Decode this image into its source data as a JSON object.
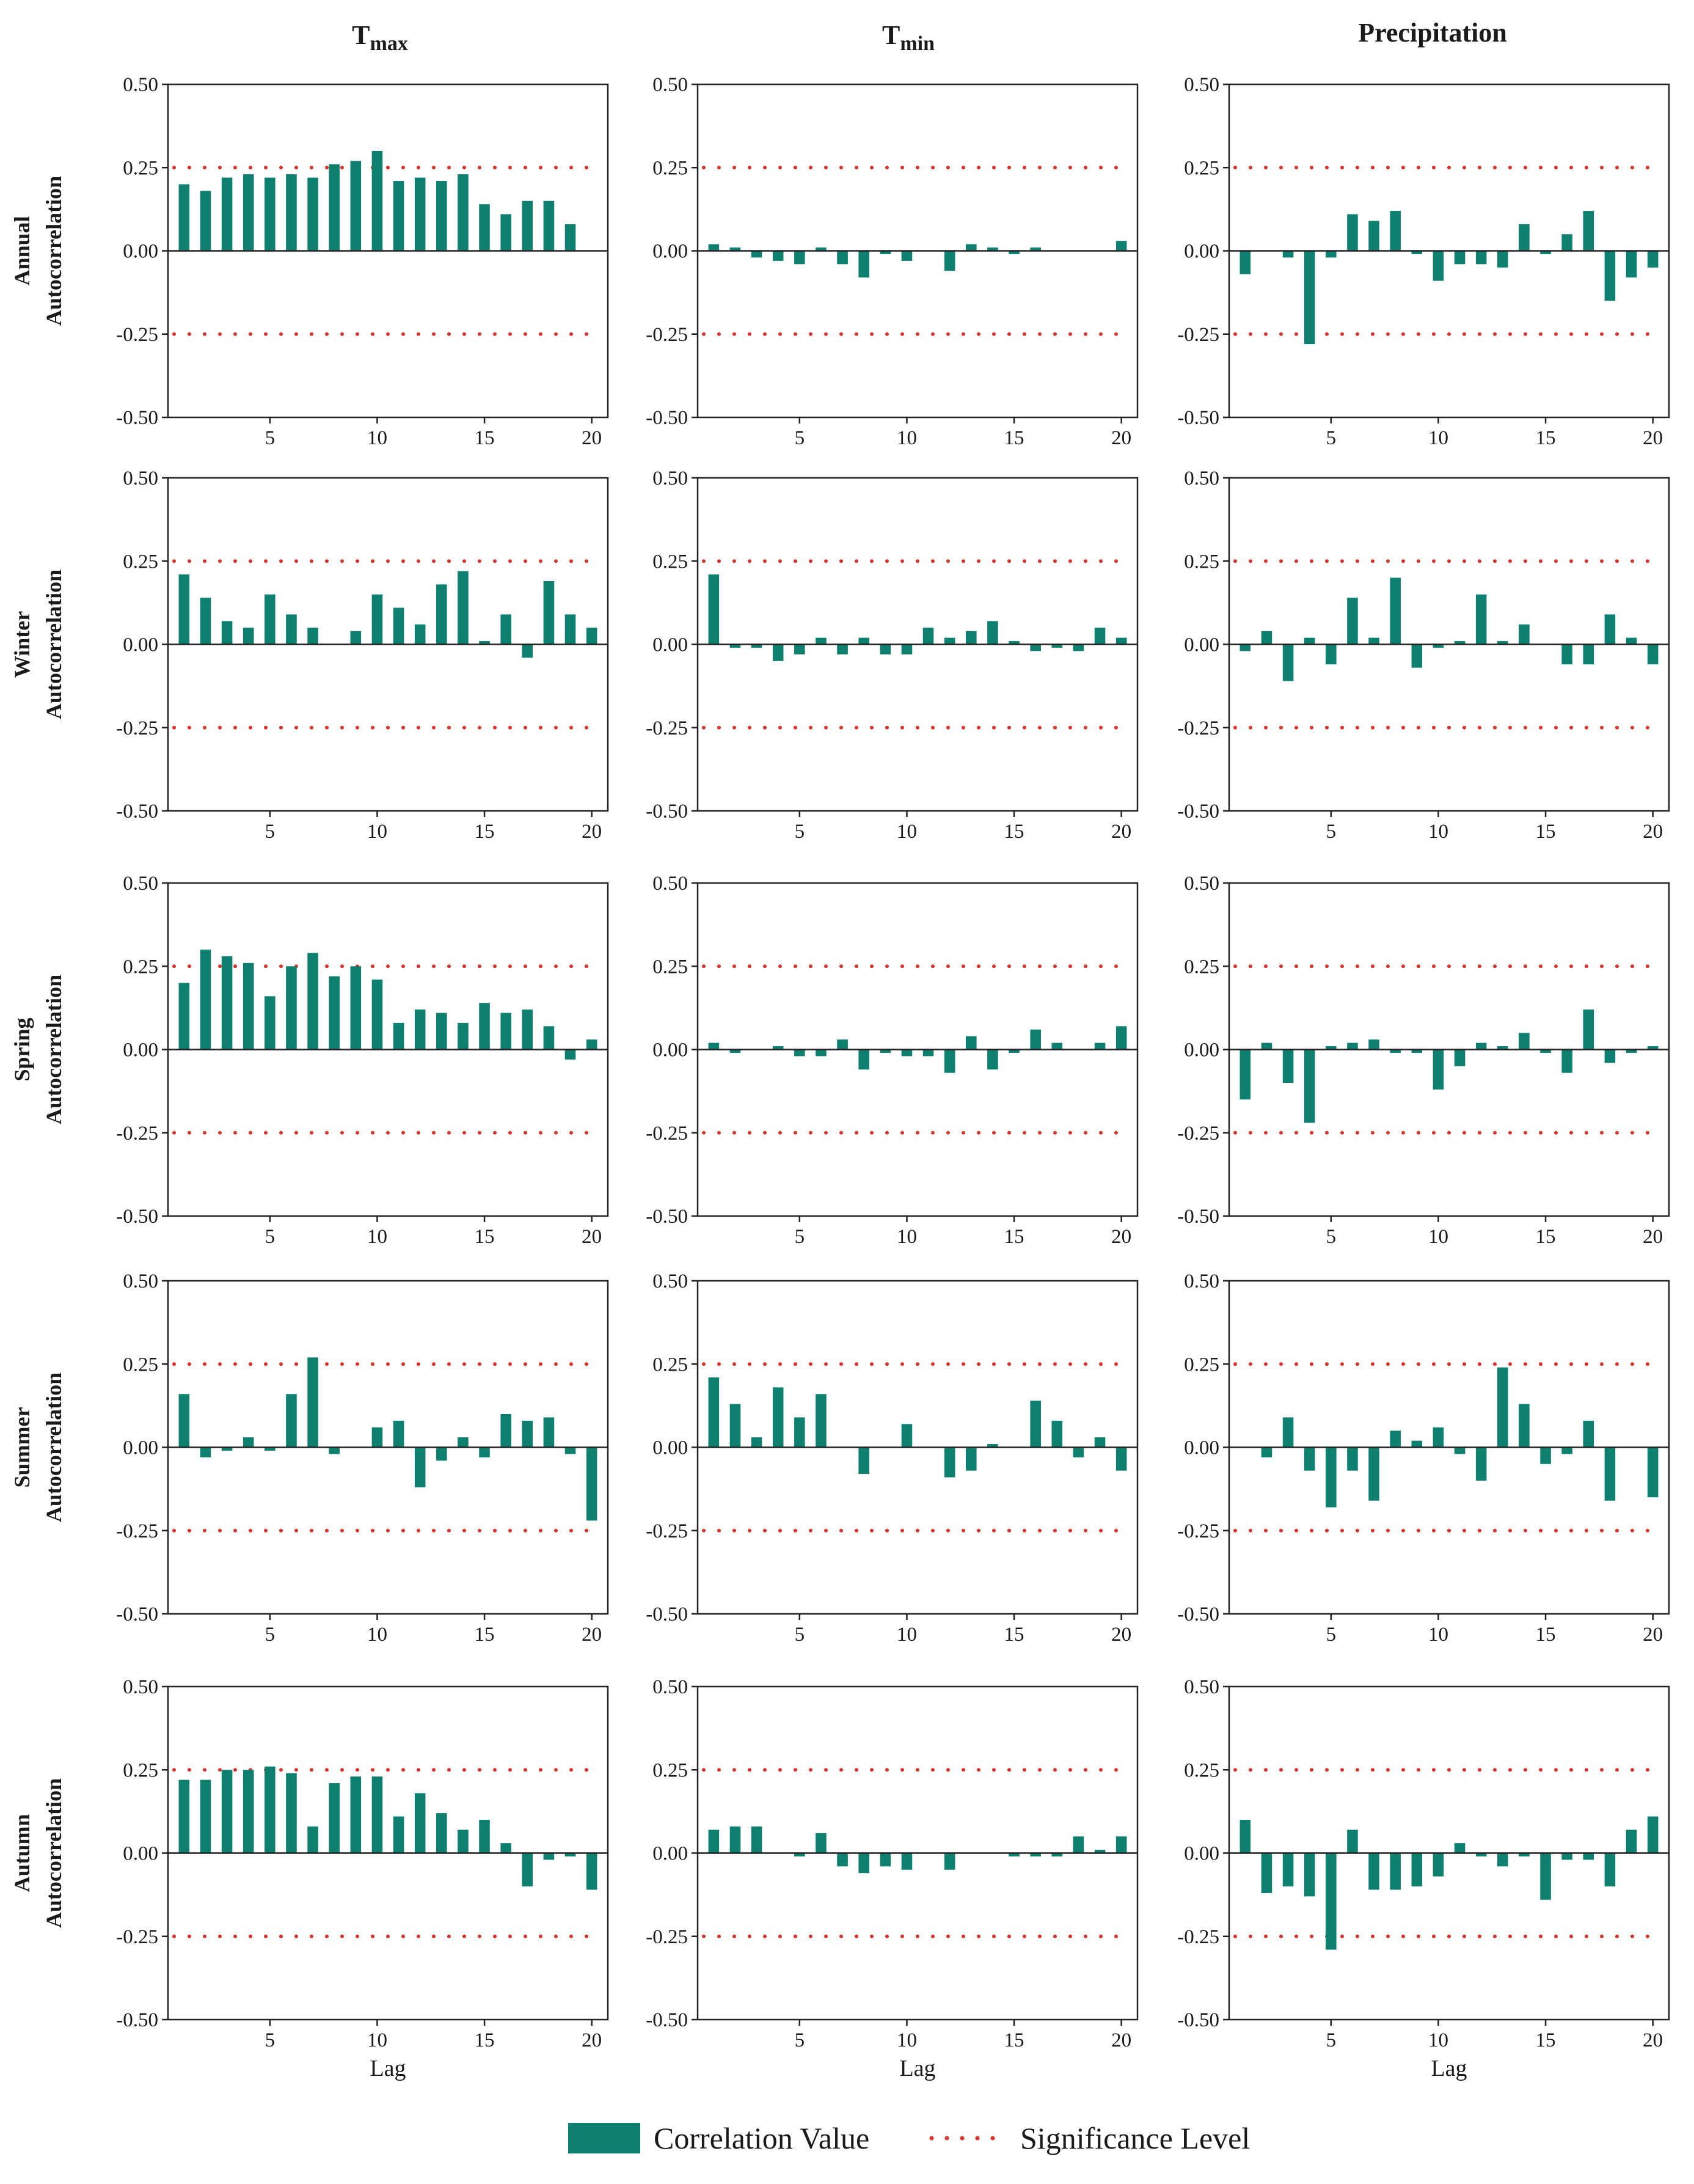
{
  "figure": {
    "column_titles": [
      {
        "main": "T",
        "sub": "max"
      },
      {
        "main": "T",
        "sub": "min"
      },
      {
        "main": "Precipitation",
        "sub": ""
      }
    ],
    "row_labels": [
      [
        "Annual",
        "Autocorrelation"
      ],
      [
        "Winter",
        "Autocorrelation"
      ],
      [
        "Spring",
        "Autocorrelation"
      ],
      [
        "Summer",
        "Autocorrelation"
      ],
      [
        "Autumn",
        "Autocorrelation"
      ]
    ],
    "legend": {
      "bar_label": "Correlation Value",
      "line_label": "Significance Level",
      "bar_color": "#0e8070",
      "line_color": "#d9342b"
    }
  },
  "chart_data": {
    "type": "bar",
    "x": [
      1,
      2,
      3,
      4,
      5,
      6,
      7,
      8,
      9,
      10,
      11,
      12,
      13,
      14,
      15,
      16,
      17,
      18,
      19,
      20
    ],
    "xlabel": "Lag",
    "xticks": [
      5,
      10,
      15,
      20
    ],
    "ylim": [
      -0.5,
      0.5
    ],
    "yticks": [
      "-0.50",
      "-0.25",
      "0.00",
      "0.25",
      "0.50"
    ],
    "significance_level": 0.25,
    "panels": [
      {
        "row": "Annual",
        "variable": "Tmax",
        "values": [
          0.2,
          0.18,
          0.22,
          0.23,
          0.22,
          0.23,
          0.22,
          0.26,
          0.27,
          0.3,
          0.21,
          0.22,
          0.21,
          0.23,
          0.14,
          0.11,
          0.15,
          0.15,
          0.08,
          0.0
        ]
      },
      {
        "row": "Annual",
        "variable": "Tmin",
        "values": [
          0.02,
          0.01,
          -0.02,
          -0.03,
          -0.04,
          0.01,
          -0.04,
          -0.08,
          -0.01,
          -0.03,
          0.0,
          -0.06,
          0.02,
          0.01,
          -0.01,
          0.01,
          0.0,
          0.0,
          0.0,
          0.03
        ]
      },
      {
        "row": "Annual",
        "variable": "Precipitation",
        "values": [
          -0.07,
          0.0,
          -0.02,
          -0.28,
          -0.02,
          0.11,
          0.09,
          0.12,
          -0.01,
          -0.09,
          -0.04,
          -0.04,
          -0.05,
          0.08,
          -0.01,
          0.05,
          0.12,
          -0.15,
          -0.08,
          -0.05
        ]
      },
      {
        "row": "Winter",
        "variable": "Tmax",
        "values": [
          0.21,
          0.14,
          0.07,
          0.05,
          0.15,
          0.09,
          0.05,
          0.0,
          0.04,
          0.15,
          0.11,
          0.06,
          0.18,
          0.22,
          0.01,
          0.09,
          -0.04,
          0.19,
          0.09,
          0.05
        ]
      },
      {
        "row": "Winter",
        "variable": "Tmin",
        "values": [
          0.21,
          -0.01,
          -0.01,
          -0.05,
          -0.03,
          0.02,
          -0.03,
          0.02,
          -0.03,
          -0.03,
          0.05,
          0.02,
          0.04,
          0.07,
          0.01,
          -0.02,
          -0.01,
          -0.02,
          0.05,
          0.02
        ]
      },
      {
        "row": "Winter",
        "variable": "Precipitation",
        "values": [
          -0.02,
          0.04,
          -0.11,
          0.02,
          -0.06,
          0.14,
          0.02,
          0.2,
          -0.07,
          -0.01,
          0.01,
          0.15,
          0.01,
          0.06,
          0.0,
          -0.06,
          -0.06,
          0.09,
          0.02,
          -0.06
        ]
      },
      {
        "row": "Spring",
        "variable": "Tmax",
        "values": [
          0.2,
          0.3,
          0.28,
          0.26,
          0.16,
          0.25,
          0.29,
          0.22,
          0.25,
          0.21,
          0.08,
          0.12,
          0.11,
          0.08,
          0.14,
          0.11,
          0.12,
          0.07,
          -0.03,
          0.03
        ]
      },
      {
        "row": "Spring",
        "variable": "Tmin",
        "values": [
          0.02,
          -0.01,
          0.0,
          0.01,
          -0.02,
          -0.02,
          0.03,
          -0.06,
          -0.01,
          -0.02,
          -0.02,
          -0.07,
          0.04,
          -0.06,
          -0.01,
          0.06,
          0.02,
          0.0,
          0.02,
          0.07
        ]
      },
      {
        "row": "Spring",
        "variable": "Precipitation",
        "values": [
          -0.15,
          0.02,
          -0.1,
          -0.22,
          0.01,
          0.02,
          0.03,
          -0.01,
          -0.01,
          -0.12,
          -0.05,
          0.02,
          0.01,
          0.05,
          -0.01,
          -0.07,
          0.12,
          -0.04,
          -0.01,
          0.01
        ]
      },
      {
        "row": "Summer",
        "variable": "Tmax",
        "values": [
          0.16,
          -0.03,
          -0.01,
          0.03,
          -0.01,
          0.16,
          0.27,
          -0.02,
          0.0,
          0.06,
          0.08,
          -0.12,
          -0.04,
          0.03,
          -0.03,
          0.1,
          0.08,
          0.09,
          -0.02,
          -0.22
        ]
      },
      {
        "row": "Summer",
        "variable": "Tmin",
        "values": [
          0.21,
          0.13,
          0.03,
          0.18,
          0.09,
          0.16,
          0.0,
          -0.08,
          0.0,
          0.07,
          0.0,
          -0.09,
          -0.07,
          0.01,
          0.0,
          0.14,
          0.08,
          -0.03,
          0.03,
          -0.07
        ]
      },
      {
        "row": "Summer",
        "variable": "Precipitation",
        "values": [
          0.0,
          -0.03,
          0.09,
          -0.07,
          -0.18,
          -0.07,
          -0.16,
          0.05,
          0.02,
          0.06,
          -0.02,
          -0.1,
          0.24,
          0.13,
          -0.05,
          -0.02,
          0.08,
          -0.16,
          0.0,
          -0.15
        ]
      },
      {
        "row": "Autumn",
        "variable": "Tmax",
        "values": [
          0.22,
          0.22,
          0.25,
          0.25,
          0.26,
          0.24,
          0.08,
          0.21,
          0.23,
          0.23,
          0.11,
          0.18,
          0.12,
          0.07,
          0.1,
          0.03,
          -0.1,
          -0.02,
          -0.01,
          -0.11
        ]
      },
      {
        "row": "Autumn",
        "variable": "Tmin",
        "values": [
          0.07,
          0.08,
          0.08,
          0.0,
          -0.01,
          0.06,
          -0.04,
          -0.06,
          -0.04,
          -0.05,
          0.0,
          -0.05,
          0.0,
          0.0,
          -0.01,
          -0.01,
          -0.01,
          0.05,
          0.01,
          0.05
        ]
      },
      {
        "row": "Autumn",
        "variable": "Precipitation",
        "values": [
          0.1,
          -0.12,
          -0.1,
          -0.13,
          -0.29,
          0.07,
          -0.11,
          -0.11,
          -0.1,
          -0.07,
          0.03,
          -0.01,
          -0.04,
          -0.01,
          -0.14,
          -0.02,
          -0.02,
          -0.1,
          0.07,
          0.11
        ]
      }
    ]
  }
}
